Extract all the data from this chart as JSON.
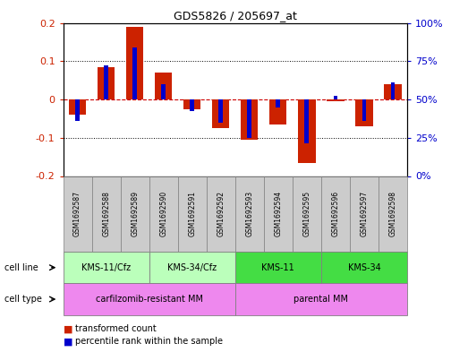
{
  "title": "GDS5826 / 205697_at",
  "samples": [
    "GSM1692587",
    "GSM1692588",
    "GSM1692589",
    "GSM1692590",
    "GSM1692591",
    "GSM1692592",
    "GSM1692593",
    "GSM1692594",
    "GSM1692595",
    "GSM1692596",
    "GSM1692597",
    "GSM1692598"
  ],
  "red_bars": [
    -0.04,
    0.085,
    0.19,
    0.07,
    -0.025,
    -0.075,
    -0.105,
    -0.065,
    -0.165,
    -0.005,
    -0.07,
    0.04
  ],
  "blue_bars": [
    -0.055,
    0.09,
    0.135,
    0.04,
    -0.03,
    -0.06,
    -0.1,
    -0.02,
    -0.115,
    0.01,
    -0.055,
    0.045
  ],
  "ylim": [
    -0.2,
    0.2
  ],
  "yticks_left": [
    -0.2,
    -0.1,
    0.0,
    0.1,
    0.2
  ],
  "yticks_right": [
    0,
    25,
    50,
    75,
    100
  ],
  "yticks_right_vals": [
    -0.2,
    -0.1,
    0.0,
    0.1,
    0.2
  ],
  "cell_lines": [
    {
      "label": "KMS-11/Cfz",
      "start": 0,
      "end": 3,
      "color": "#bbffbb"
    },
    {
      "label": "KMS-34/Cfz",
      "start": 3,
      "end": 6,
      "color": "#bbffbb"
    },
    {
      "label": "KMS-11",
      "start": 6,
      "end": 9,
      "color": "#44dd44"
    },
    {
      "label": "KMS-34",
      "start": 9,
      "end": 12,
      "color": "#44dd44"
    }
  ],
  "cell_types": [
    {
      "label": "carfilzomib-resistant MM",
      "start": 0,
      "end": 6,
      "color": "#ee88ee"
    },
    {
      "label": "parental MM",
      "start": 6,
      "end": 12,
      "color": "#ee88ee"
    }
  ],
  "red_color": "#cc2200",
  "blue_color": "#0000cc",
  "zero_line_color": "#cc0000",
  "grid_color": "#000000",
  "sample_box_color": "#cccccc",
  "legend_red": "transformed count",
  "legend_blue": "percentile rank within the sample"
}
